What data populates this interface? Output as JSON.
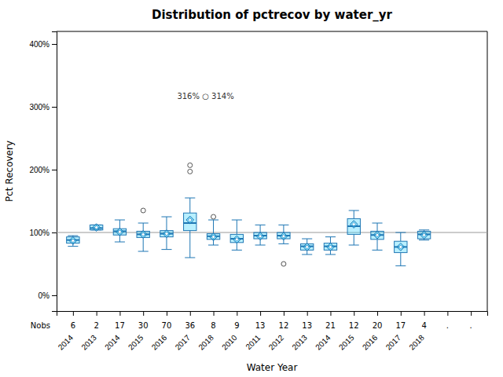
{
  "chart_data": {
    "type": "box",
    "title": "Distribution of pctrecov by water_yr",
    "xlabel": "Water Year",
    "ylabel": "Pct Recovery",
    "categories": [
      "2014",
      "2013",
      "2014",
      "2015",
      "2016",
      "2017",
      "2018",
      "2010",
      "2011",
      "2012",
      "2013",
      "2014",
      "2015",
      "2016",
      "2017",
      "2018",
      null,
      null
    ],
    "q1": [
      83,
      104,
      96,
      92,
      93,
      103,
      89,
      84,
      90,
      90,
      72,
      72,
      97,
      89,
      68,
      90,
      null,
      null
    ],
    "median": [
      88,
      107,
      102,
      97,
      98,
      115,
      94,
      90,
      95,
      95,
      78,
      78,
      110,
      96,
      77,
      97,
      null,
      null
    ],
    "q3": [
      93,
      112,
      106,
      102,
      103,
      131,
      98,
      97,
      100,
      100,
      82,
      83,
      122,
      102,
      86,
      102,
      null,
      null
    ],
    "mean": [
      87,
      108,
      101,
      97,
      98,
      120,
      93,
      89,
      94,
      94,
      77,
      77,
      113,
      96,
      77,
      96,
      null,
      null
    ],
    "whislo": [
      78,
      104,
      85,
      70,
      73,
      60,
      80,
      72,
      80,
      82,
      65,
      65,
      80,
      72,
      47,
      88,
      null,
      null
    ],
    "whishi": [
      95,
      112,
      120,
      115,
      125,
      155,
      120,
      120,
      112,
      112,
      90,
      93,
      135,
      115,
      100,
      104,
      null,
      null
    ],
    "fliers": [
      [],
      [],
      [],
      [
        135
      ],
      [],
      [
        197,
        207
      ],
      [
        125
      ],
      [],
      [],
      [
        50
      ],
      [],
      [],
      [],
      [],
      [],
      [],
      [],
      []
    ],
    "nobs": [
      6,
      2,
      17,
      30,
      70,
      36,
      8,
      9,
      13,
      12,
      13,
      21,
      12,
      20,
      17,
      4,
      null,
      null
    ],
    "nobs_label": "Nobs",
    "nobs_missing": ".",
    "reference_line": 100,
    "annotations": [
      {
        "text": "316% ○ 314%",
        "x": 5,
        "y": 312
      }
    ],
    "ylim": [
      -25,
      420
    ],
    "yticks": [
      {
        "value": 0,
        "label": "0%"
      },
      {
        "value": 100,
        "label": "100%"
      },
      {
        "value": 200,
        "label": "200%"
      },
      {
        "value": 300,
        "label": "300%"
      },
      {
        "value": 400,
        "label": "400%"
      }
    ]
  }
}
